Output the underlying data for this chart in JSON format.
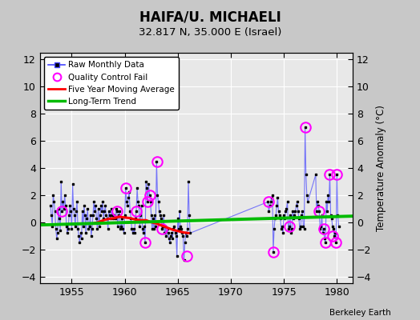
{
  "title": "HAIFA/U. MICHAELI",
  "subtitle": "32.817 N, 35.000 E (Israel)",
  "ylabel_right": "Temperature Anomaly (°C)",
  "credit": "Berkeley Earth",
  "xlim": [
    1952.0,
    1981.5
  ],
  "ylim": [
    -4.5,
    12.5
  ],
  "yticks": [
    -4,
    -2,
    0,
    2,
    4,
    6,
    8,
    10,
    12
  ],
  "xticks": [
    1955,
    1960,
    1965,
    1970,
    1975,
    1980
  ],
  "bg_color": "#c8c8c8",
  "plot_bg_color": "#e8e8e8",
  "raw_x": [
    1953.0,
    1953.083,
    1953.167,
    1953.25,
    1953.333,
    1953.417,
    1953.5,
    1953.583,
    1953.667,
    1953.75,
    1953.833,
    1953.917,
    1954.0,
    1954.083,
    1954.167,
    1954.25,
    1954.333,
    1954.417,
    1954.5,
    1954.583,
    1954.667,
    1954.75,
    1954.833,
    1954.917,
    1955.0,
    1955.083,
    1955.167,
    1955.25,
    1955.333,
    1955.417,
    1955.5,
    1955.583,
    1955.667,
    1955.75,
    1955.833,
    1955.917,
    1956.0,
    1956.083,
    1956.167,
    1956.25,
    1956.333,
    1956.417,
    1956.5,
    1956.583,
    1956.667,
    1956.75,
    1956.833,
    1956.917,
    1957.0,
    1957.083,
    1957.167,
    1957.25,
    1957.333,
    1957.417,
    1957.5,
    1957.583,
    1957.667,
    1957.75,
    1957.833,
    1957.917,
    1958.0,
    1958.083,
    1958.167,
    1958.25,
    1958.333,
    1958.417,
    1958.5,
    1958.583,
    1958.667,
    1958.75,
    1958.833,
    1958.917,
    1959.0,
    1959.083,
    1959.167,
    1959.25,
    1959.333,
    1959.417,
    1959.5,
    1959.583,
    1959.667,
    1959.75,
    1959.833,
    1959.917,
    1960.0,
    1960.083,
    1960.167,
    1960.25,
    1960.333,
    1960.417,
    1960.5,
    1960.583,
    1960.667,
    1960.75,
    1960.833,
    1960.917,
    1961.0,
    1961.083,
    1961.167,
    1961.25,
    1961.333,
    1961.417,
    1961.5,
    1961.583,
    1961.667,
    1961.75,
    1961.833,
    1961.917,
    1962.0,
    1962.083,
    1962.167,
    1962.25,
    1962.333,
    1962.417,
    1962.5,
    1962.583,
    1962.667,
    1962.75,
    1962.833,
    1962.917,
    1963.0,
    1963.083,
    1963.167,
    1963.25,
    1963.333,
    1963.417,
    1963.5,
    1963.583,
    1963.667,
    1963.75,
    1963.833,
    1963.917,
    1964.0,
    1964.083,
    1964.167,
    1964.25,
    1964.333,
    1964.417,
    1964.5,
    1964.583,
    1964.667,
    1964.75,
    1964.833,
    1964.917,
    1965.0,
    1965.083,
    1965.167,
    1965.25,
    1965.333,
    1965.417,
    1965.5,
    1965.583,
    1965.667,
    1965.75,
    1965.833,
    1965.917,
    1966.0,
    1966.083,
    1966.167,
    1973.5,
    1973.583,
    1973.667,
    1973.75,
    1973.833,
    1973.917,
    1974.0,
    1974.083,
    1974.167,
    1974.25,
    1974.333,
    1974.417,
    1974.5,
    1974.583,
    1974.667,
    1974.75,
    1974.833,
    1974.917,
    1975.0,
    1975.083,
    1975.167,
    1975.25,
    1975.333,
    1975.417,
    1975.5,
    1975.583,
    1975.667,
    1975.75,
    1975.833,
    1975.917,
    1976.0,
    1976.083,
    1976.167,
    1976.25,
    1976.333,
    1976.417,
    1976.5,
    1976.583,
    1976.667,
    1976.75,
    1976.833,
    1976.917,
    1977.0,
    1977.083,
    1977.167,
    1977.25,
    1978.0,
    1978.083,
    1978.167,
    1978.25,
    1978.333,
    1978.417,
    1978.5,
    1978.583,
    1978.667,
    1978.75,
    1978.833,
    1978.917,
    1979.0,
    1979.083,
    1979.167,
    1979.25,
    1979.333,
    1979.417,
    1979.5,
    1979.583,
    1979.667,
    1979.75,
    1979.833,
    1979.917,
    1980.0,
    1980.083,
    1980.167
  ],
  "raw_y": [
    1.2,
    0.5,
    -0.3,
    2.0,
    1.5,
    0.8,
    -0.5,
    -1.2,
    -0.8,
    1.0,
    0.3,
    -0.6,
    3.0,
    0.8,
    1.5,
    1.0,
    2.0,
    1.2,
    -0.3,
    -0.8,
    -0.5,
    0.5,
    1.2,
    0.8,
    -0.5,
    2.8,
    1.0,
    0.5,
    -0.3,
    0.8,
    1.5,
    -0.5,
    -1.0,
    -1.5,
    -0.8,
    -1.2,
    0.8,
    -0.3,
    1.2,
    0.5,
    -0.8,
    0.3,
    1.0,
    -0.5,
    -0.3,
    0.5,
    -1.0,
    -0.5,
    0.5,
    1.5,
    0.8,
    1.2,
    0.3,
    -0.5,
    1.0,
    -0.3,
    0.5,
    1.2,
    0.8,
    1.5,
    0.3,
    0.8,
    1.2,
    0.5,
    0.3,
    -0.5,
    0.8,
    0.5,
    0.3,
    1.0,
    0.5,
    0.3,
    0.5,
    0.3,
    1.0,
    0.8,
    -0.3,
    0.5,
    0.8,
    -0.5,
    -0.3,
    0.3,
    -0.5,
    -0.8,
    0.5,
    2.5,
    1.5,
    1.2,
    1.8,
    2.2,
    0.8,
    0.3,
    -0.5,
    -0.8,
    -0.5,
    -0.8,
    0.3,
    0.8,
    2.5,
    1.5,
    1.2,
    -0.3,
    0.5,
    1.2,
    -0.5,
    -0.8,
    -0.3,
    -1.5,
    3.0,
    2.5,
    1.5,
    2.8,
    2.0,
    1.5,
    0.5,
    -0.5,
    0.3,
    -0.5,
    0.5,
    -0.3,
    4.5,
    2.0,
    1.5,
    0.8,
    0.5,
    0.3,
    -0.5,
    -0.3,
    0.5,
    -0.8,
    -0.3,
    -1.0,
    -0.5,
    -0.8,
    -1.2,
    -1.5,
    -1.0,
    -0.8,
    -1.2,
    -0.5,
    -0.3,
    -0.8,
    -1.0,
    -2.5,
    0.3,
    -0.5,
    0.8,
    -0.3,
    -0.5,
    -0.8,
    -1.0,
    -2.8,
    -1.5,
    -0.8,
    -1.0,
    -0.5,
    3.0,
    0.5,
    -0.8,
    1.5,
    0.8,
    1.2,
    1.5,
    1.8,
    2.0,
    -2.2,
    -0.5,
    0.3,
    0.5,
    1.2,
    1.8,
    0.8,
    0.5,
    0.3,
    -0.5,
    -0.3,
    -0.8,
    0.5,
    0.3,
    0.8,
    1.0,
    1.5,
    -0.5,
    -0.3,
    0.5,
    -0.8,
    -0.5,
    0.8,
    0.3,
    0.5,
    0.8,
    1.2,
    1.5,
    0.8,
    0.3,
    -0.5,
    -0.3,
    0.5,
    0.8,
    -0.3,
    -0.5,
    7.0,
    3.5,
    2.0,
    1.5,
    3.5,
    0.8,
    1.5,
    1.2,
    0.8,
    -0.5,
    -0.3,
    0.5,
    -0.8,
    -0.5,
    -1.2,
    -1.5,
    1.5,
    0.8,
    2.0,
    1.5,
    3.5,
    0.5,
    0.3,
    -0.3,
    -0.5,
    -1.0,
    -0.8,
    -1.5,
    3.5,
    0.5,
    -0.3
  ],
  "qc_fail_x": [
    1954.083,
    1959.25,
    1960.083,
    1961.083,
    1961.917,
    1962.167,
    1962.333,
    1963.083,
    1963.5,
    1965.833,
    1973.583,
    1974.0,
    1975.5,
    1977.0,
    1978.333,
    1978.75,
    1978.917,
    1979.333,
    1979.583,
    1979.917,
    1980.0
  ],
  "qc_fail_y": [
    0.8,
    0.8,
    2.5,
    0.8,
    -1.5,
    1.5,
    2.0,
    4.5,
    -0.5,
    -2.5,
    1.5,
    -2.2,
    -0.3,
    7.0,
    0.8,
    -0.5,
    -1.5,
    3.5,
    -1.0,
    -1.5,
    3.5
  ],
  "moving_avg_x": [
    1957.0,
    1957.5,
    1958.0,
    1958.5,
    1959.0,
    1959.5,
    1960.0,
    1960.5,
    1961.0,
    1961.5,
    1962.0,
    1962.5,
    1963.0,
    1963.5,
    1964.0,
    1964.5,
    1965.0,
    1965.5,
    1966.0
  ],
  "moving_avg_y": [
    -0.1,
    0.0,
    0.15,
    0.25,
    0.3,
    0.4,
    0.35,
    0.3,
    0.2,
    0.15,
    0.15,
    0.0,
    -0.1,
    -0.25,
    -0.4,
    -0.55,
    -0.65,
    -0.75,
    -0.8
  ],
  "trend_x": [
    1952.0,
    1981.5
  ],
  "trend_y": [
    -0.2,
    0.45
  ],
  "raw_color": "#4444ff",
  "raw_marker_color": "#000000",
  "qc_color": "#ff00ff",
  "moving_avg_color": "#ff0000",
  "trend_color": "#00bb00"
}
